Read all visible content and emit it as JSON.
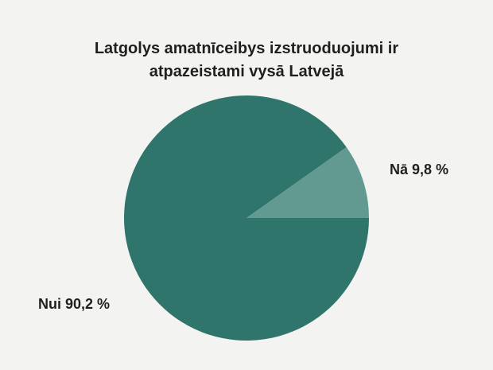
{
  "chart_data": {
    "type": "pie",
    "title_lines": [
      "Latgolys amatnīceibys izstruoduojumi ir",
      "atpazeistami vysā Latvejā"
    ],
    "slices": [
      {
        "label": "Nui 90,2 %",
        "value": 90.2,
        "color": "#30756c"
      },
      {
        "label": "Nā 9,8 %",
        "value": 9.8,
        "color": "#629a92"
      }
    ],
    "start_angle_deg": 0,
    "direction": "counterclockwise-for-small-slice"
  }
}
